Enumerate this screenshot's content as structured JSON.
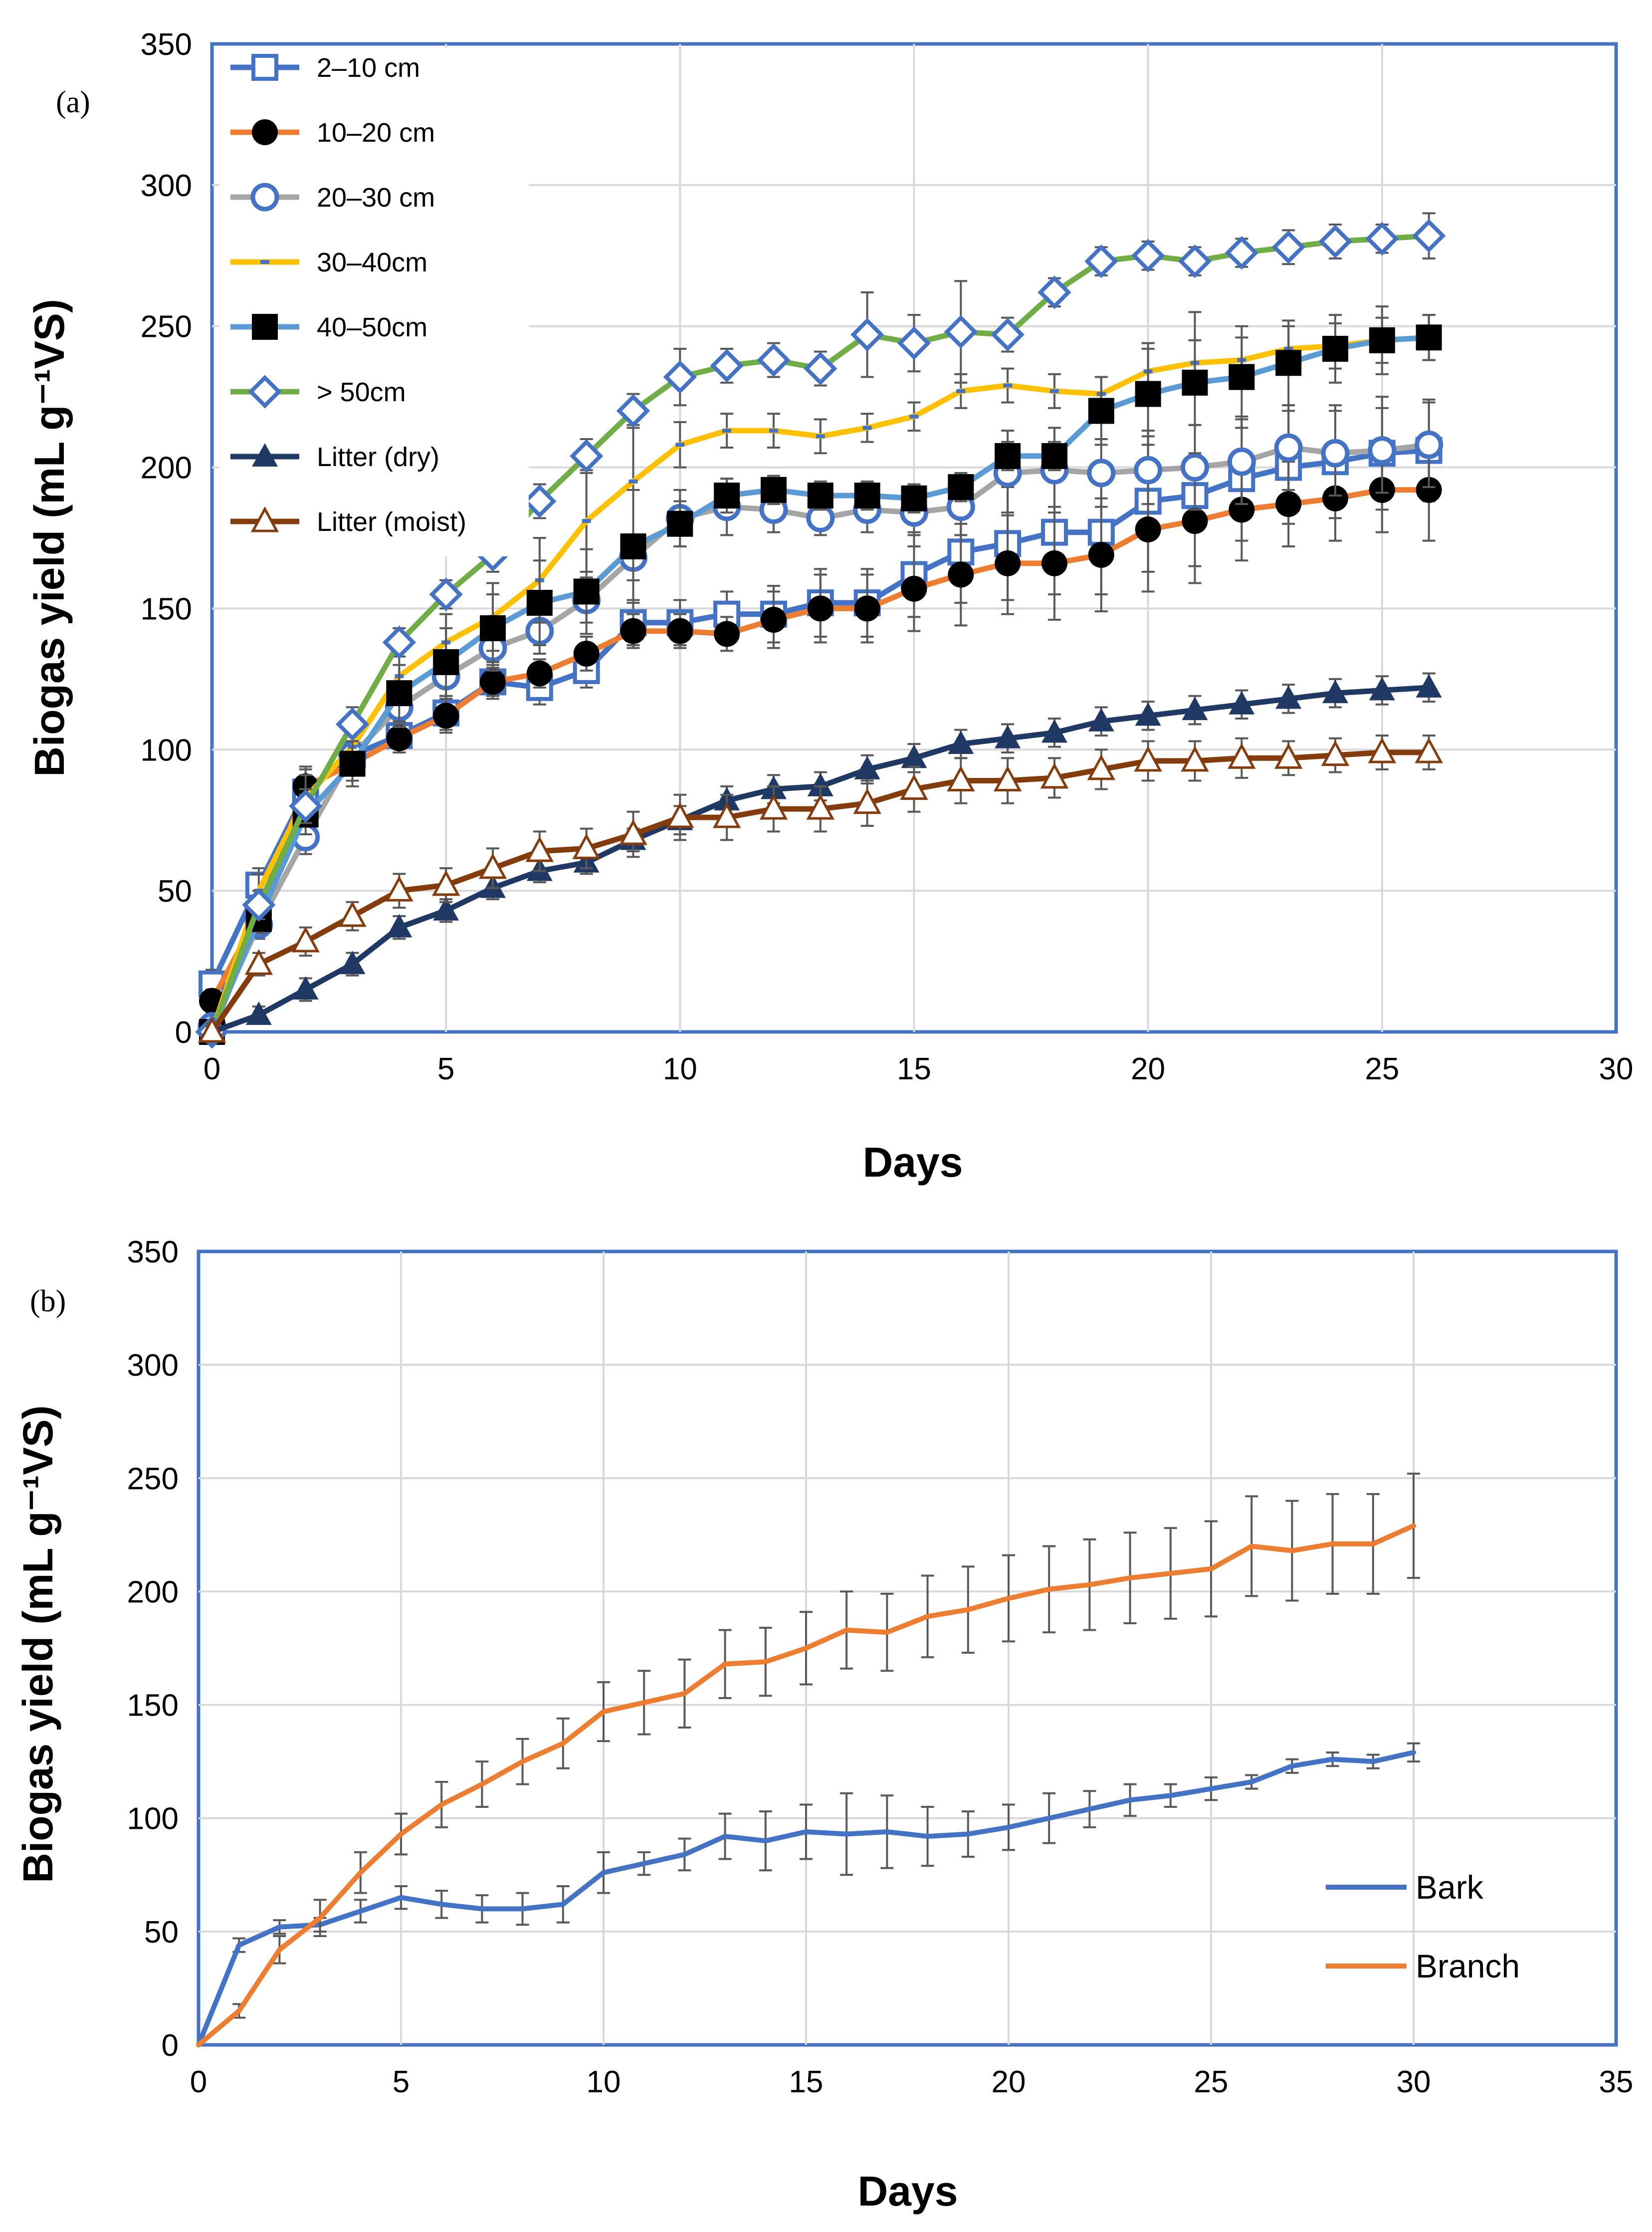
{
  "chart_data": [
    {
      "type": "line",
      "panel_label": "(a)",
      "xlabel": "Days",
      "ylabel": "Biogas yield (mL g⁻¹VS)",
      "xlim": [
        0,
        30
      ],
      "ylim": [
        0,
        350
      ],
      "xticks": [
        "0",
        "5",
        "10",
        "15",
        "20",
        "25",
        "30"
      ],
      "yticks": [
        "0",
        "50",
        "100",
        "150",
        "200",
        "250",
        "300",
        "350"
      ],
      "grid": true,
      "legend_position": "top-left",
      "series": [
        {
          "name": "2–10 cm",
          "color": "#4472C4",
          "marker": "open-square",
          "x": [
            0,
            1,
            2,
            3,
            4,
            5,
            6,
            7,
            8,
            9,
            10,
            11,
            12,
            13,
            14,
            15,
            16,
            17,
            18,
            19,
            20,
            21,
            22,
            23,
            24,
            25,
            26
          ],
          "values": [
            17,
            52,
            85,
            98,
            105,
            113,
            124,
            122,
            128,
            145,
            145,
            148,
            148,
            152,
            152,
            162,
            170,
            173,
            177,
            177,
            188,
            190,
            196,
            200,
            202,
            205,
            206
          ],
          "errors": [
            5,
            6,
            8,
            7,
            6,
            6,
            6,
            6,
            6,
            8,
            8,
            8,
            10,
            12,
            12,
            15,
            18,
            20,
            22,
            22,
            25,
            25,
            22,
            20,
            20,
            20,
            18
          ]
        },
        {
          "name": "10–20 cm",
          "color": "#ED7D31",
          "marker": "filled-circle",
          "x": [
            0,
            1,
            2,
            3,
            4,
            5,
            6,
            7,
            8,
            9,
            10,
            11,
            12,
            13,
            14,
            15,
            16,
            17,
            18,
            19,
            20,
            21,
            22,
            23,
            24,
            25,
            26
          ],
          "values": [
            11,
            42,
            87,
            95,
            104,
            112,
            124,
            127,
            134,
            142,
            142,
            141,
            146,
            150,
            150,
            157,
            162,
            166,
            166,
            169,
            178,
            181,
            185,
            187,
            189,
            192,
            192
          ],
          "errors": [
            4,
            5,
            7,
            6,
            5,
            6,
            5,
            5,
            6,
            6,
            6,
            6,
            10,
            12,
            12,
            15,
            18,
            18,
            20,
            20,
            22,
            22,
            18,
            15,
            15,
            15,
            18
          ]
        },
        {
          "name": "20–30 cm",
          "color": "#A5A5A5",
          "marker": "open-circle-blue",
          "x": [
            0,
            1,
            2,
            3,
            4,
            5,
            6,
            7,
            8,
            9,
            10,
            11,
            12,
            13,
            14,
            15,
            16,
            17,
            18,
            19,
            20,
            21,
            22,
            23,
            24,
            25,
            26
          ],
          "values": [
            2,
            38,
            69,
            98,
            115,
            126,
            136,
            142,
            153,
            168,
            182,
            186,
            185,
            182,
            185,
            184,
            186,
            198,
            199,
            198,
            199,
            200,
            202,
            207,
            205,
            206,
            208
          ],
          "errors": [
            3,
            5,
            6,
            7,
            7,
            8,
            8,
            8,
            8,
            8,
            10,
            10,
            8,
            6,
            8,
            8,
            10,
            15,
            15,
            12,
            12,
            15,
            15,
            15,
            15,
            15,
            15
          ]
        },
        {
          "name": "30–40cm",
          "color": "#FFC000",
          "marker": "dash",
          "x": [
            0,
            1,
            2,
            3,
            4,
            5,
            6,
            7,
            8,
            9,
            10,
            11,
            12,
            13,
            14,
            15,
            16,
            17,
            18,
            19,
            20,
            21,
            22,
            23,
            24,
            25,
            26
          ],
          "values": [
            0,
            50,
            83,
            101,
            126,
            138,
            147,
            160,
            181,
            195,
            208,
            213,
            213,
            211,
            214,
            218,
            227,
            229,
            227,
            226,
            234,
            237,
            238,
            242,
            243,
            245,
            246
          ],
          "errors": [
            3,
            6,
            8,
            8,
            10,
            10,
            12,
            15,
            18,
            20,
            8,
            6,
            6,
            6,
            5,
            5,
            6,
            6,
            6,
            6,
            8,
            8,
            8,
            8,
            8,
            8,
            8
          ]
        },
        {
          "name": "40–50cm",
          "color": "#5B9BD5",
          "marker": "filled-square",
          "x": [
            0,
            1,
            2,
            3,
            4,
            5,
            6,
            7,
            8,
            9,
            10,
            11,
            12,
            13,
            14,
            15,
            16,
            17,
            18,
            19,
            20,
            21,
            22,
            23,
            24,
            25,
            26
          ],
          "values": [
            0,
            40,
            77,
            95,
            120,
            131,
            143,
            152,
            156,
            172,
            180,
            190,
            192,
            190,
            190,
            189,
            193,
            204,
            204,
            220,
            226,
            230,
            232,
            237,
            242,
            245,
            246
          ],
          "errors": [
            3,
            5,
            7,
            8,
            10,
            12,
            12,
            15,
            15,
            20,
            8,
            6,
            5,
            5,
            5,
            5,
            5,
            5,
            5,
            12,
            18,
            25,
            18,
            15,
            12,
            12,
            8
          ]
        },
        {
          "name": "> 50cm",
          "color": "#70AD47",
          "marker": "open-diamond-blue",
          "x": [
            0,
            1,
            2,
            3,
            4,
            5,
            6,
            7,
            8,
            9,
            10,
            11,
            12,
            13,
            14,
            15,
            16,
            17,
            18,
            19,
            20,
            21,
            22,
            23,
            24,
            25,
            26
          ],
          "values": [
            0,
            45,
            80,
            109,
            138,
            155,
            169,
            188,
            204,
            220,
            232,
            236,
            238,
            235,
            247,
            244,
            248,
            247,
            262,
            273,
            275,
            273,
            276,
            278,
            280,
            281,
            282
          ],
          "errors": [
            3,
            5,
            6,
            6,
            5,
            5,
            6,
            6,
            6,
            6,
            10,
            6,
            6,
            6,
            15,
            10,
            18,
            6,
            5,
            5,
            5,
            5,
            5,
            6,
            6,
            5,
            8
          ]
        },
        {
          "name": "Litter (dry)",
          "color": "#203864",
          "marker": "filled-triangle",
          "x": [
            0,
            1,
            2,
            3,
            4,
            5,
            6,
            7,
            8,
            9,
            10,
            11,
            12,
            13,
            14,
            15,
            16,
            17,
            18,
            19,
            20,
            21,
            22,
            23,
            24,
            25,
            26
          ],
          "values": [
            0,
            6,
            15,
            24,
            37,
            43,
            51,
            57,
            60,
            68,
            75,
            82,
            86,
            87,
            93,
            97,
            102,
            104,
            106,
            110,
            112,
            114,
            116,
            118,
            120,
            121,
            122
          ],
          "errors": [
            2,
            3,
            4,
            4,
            4,
            4,
            4,
            4,
            4,
            4,
            5,
            5,
            5,
            5,
            5,
            5,
            5,
            5,
            5,
            5,
            5,
            5,
            5,
            5,
            5,
            5,
            5
          ]
        },
        {
          "name": "Litter (moist)",
          "color": "#843C0C",
          "marker": "open-triangle",
          "x": [
            0,
            1,
            2,
            3,
            4,
            5,
            6,
            7,
            8,
            9,
            10,
            11,
            12,
            13,
            14,
            15,
            16,
            17,
            18,
            19,
            20,
            21,
            22,
            23,
            24,
            25,
            26
          ],
          "values": [
            0,
            24,
            32,
            41,
            50,
            52,
            58,
            64,
            65,
            70,
            76,
            76,
            79,
            79,
            81,
            86,
            89,
            89,
            90,
            93,
            96,
            96,
            97,
            97,
            98,
            99,
            99
          ],
          "errors": [
            3,
            4,
            5,
            5,
            6,
            6,
            7,
            7,
            7,
            8,
            8,
            8,
            8,
            8,
            8,
            8,
            8,
            8,
            7,
            7,
            7,
            7,
            7,
            6,
            6,
            6,
            6
          ]
        }
      ]
    },
    {
      "type": "line",
      "panel_label": "(b)",
      "xlabel": "Days",
      "ylabel": "Biogas yield (mL g⁻¹VS)",
      "xlim": [
        0,
        35
      ],
      "ylim": [
        0,
        350
      ],
      "xticks": [
        "0",
        "5",
        "10",
        "15",
        "20",
        "25",
        "30",
        "35"
      ],
      "yticks": [
        "0",
        "50",
        "100",
        "150",
        "200",
        "250",
        "300",
        "350"
      ],
      "grid": true,
      "legend_position": "right",
      "series": [
        {
          "name": "Bark",
          "color": "#4472C4",
          "x": [
            0,
            1,
            2,
            3,
            4,
            5,
            6,
            7,
            8,
            9,
            10,
            11,
            12,
            13,
            14,
            15,
            16,
            17,
            18,
            19,
            20,
            21,
            22,
            23,
            24,
            25,
            26,
            27,
            28,
            29,
            30
          ],
          "values": [
            0,
            44,
            52,
            53,
            59,
            65,
            62,
            60,
            60,
            62,
            76,
            80,
            84,
            92,
            90,
            94,
            93,
            94,
            92,
            93,
            96,
            100,
            104,
            108,
            110,
            113,
            116,
            123,
            126,
            125,
            129
          ],
          "errors": [
            0,
            3,
            3,
            3,
            5,
            5,
            6,
            6,
            7,
            8,
            9,
            5,
            7,
            10,
            13,
            12,
            18,
            16,
            13,
            10,
            10,
            11,
            8,
            7,
            5,
            5,
            3,
            3,
            3,
            3,
            4
          ]
        },
        {
          "name": "Branch",
          "color": "#ED7D31",
          "x": [
            0,
            1,
            2,
            3,
            4,
            5,
            6,
            7,
            8,
            9,
            10,
            11,
            12,
            13,
            14,
            15,
            16,
            17,
            18,
            19,
            20,
            21,
            22,
            23,
            24,
            25,
            26,
            27,
            28,
            29,
            30
          ],
          "values": [
            0,
            15,
            42,
            56,
            76,
            93,
            106,
            115,
            125,
            133,
            147,
            151,
            155,
            168,
            169,
            175,
            183,
            182,
            189,
            192,
            197,
            201,
            203,
            206,
            208,
            210,
            220,
            218,
            221,
            221,
            229
          ],
          "errors": [
            0,
            3,
            6,
            8,
            9,
            9,
            10,
            10,
            10,
            11,
            13,
            14,
            15,
            15,
            15,
            16,
            17,
            17,
            18,
            19,
            19,
            19,
            20,
            20,
            20,
            21,
            22,
            22,
            22,
            22,
            23
          ]
        }
      ]
    }
  ]
}
